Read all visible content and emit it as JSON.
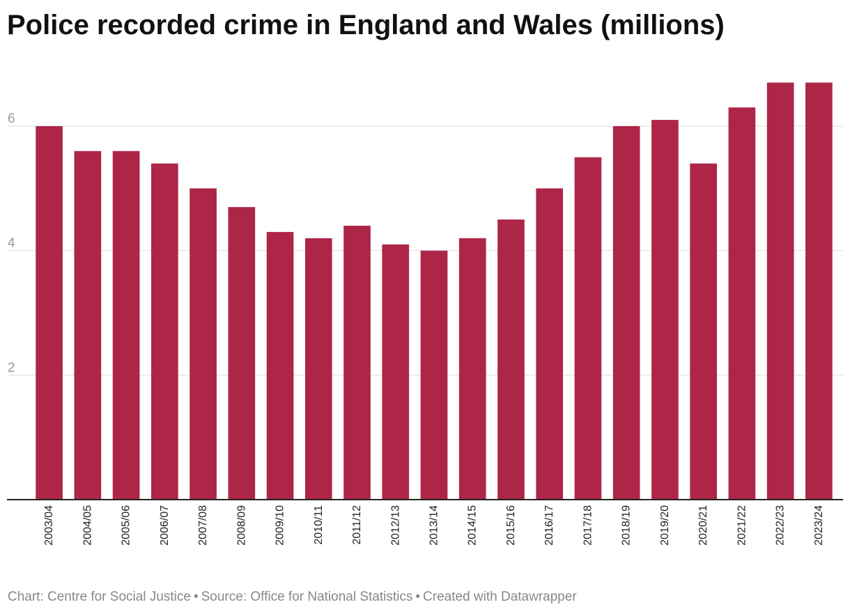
{
  "title": "Police recorded crime in England and Wales (millions)",
  "footer": {
    "chart_credit": "Chart: Centre for Social Justice",
    "source": "Source: Office for National Statistics",
    "created_with": "Created with Datawrapper",
    "separator": "•"
  },
  "colors": {
    "bar": "#ad2647",
    "grid": "#dedede",
    "baseline": "#222222"
  },
  "chart_data": {
    "type": "bar",
    "title": "Police recorded crime in England and Wales (millions)",
    "xlabel": "",
    "ylabel": "",
    "ylim": [
      0,
      6.9
    ],
    "yticks": [
      2,
      4,
      6
    ],
    "grid": true,
    "categories": [
      "2003/04",
      "2004/05",
      "2005/06",
      "2006/07",
      "2007/08",
      "2008/09",
      "2009/10",
      "2010/11",
      "2011/12",
      "2012/13",
      "2013/14",
      "2014/15",
      "2015/16",
      "2016/17",
      "2017/18",
      "2018/19",
      "2019/20",
      "2020/21",
      "2021/22",
      "2022/23",
      "2023/24"
    ],
    "values": [
      6.0,
      5.6,
      5.6,
      5.4,
      5.0,
      4.7,
      4.3,
      4.2,
      4.4,
      4.1,
      4.0,
      4.2,
      4.5,
      5.0,
      5.5,
      6.0,
      6.1,
      5.4,
      6.3,
      6.7,
      6.7
    ]
  }
}
